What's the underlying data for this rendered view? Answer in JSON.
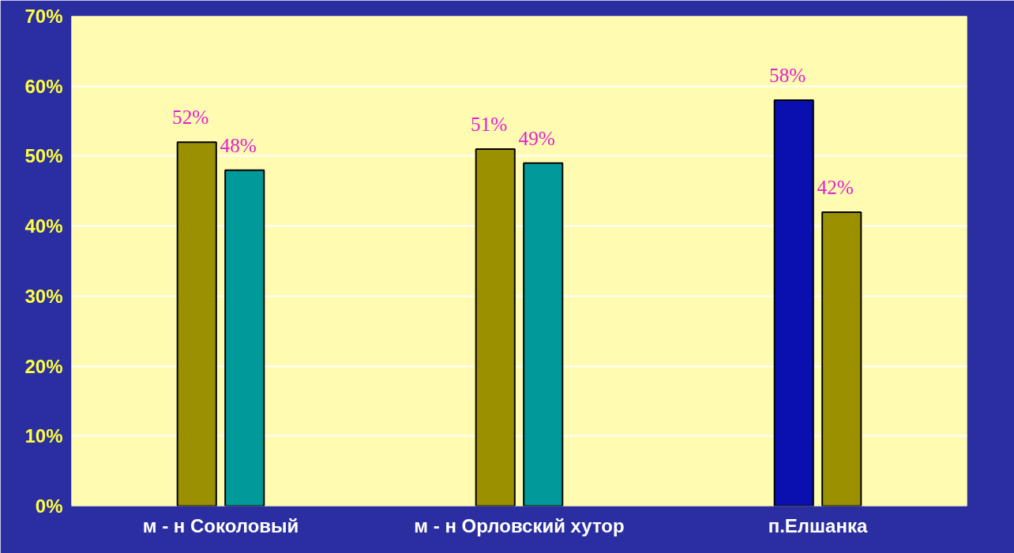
{
  "chart_data": {
    "type": "bar",
    "categories": [
      "м - н Соколовый",
      "м - н Орловский хутор",
      "п.Елшанка"
    ],
    "series": [
      {
        "colors": [
          "#9a9000",
          "#9a9000",
          "#0a10b0"
        ],
        "values": [
          52,
          51,
          58
        ]
      },
      {
        "colors": [
          "#009a9a",
          "#009a9a",
          "#9a9000"
        ],
        "values": [
          48,
          49,
          42
        ]
      }
    ],
    "ylim": [
      0,
      70
    ],
    "yticks": [
      {
        "value": 0,
        "label": "0%"
      },
      {
        "value": 10,
        "label": "10%"
      },
      {
        "value": 20,
        "label": "20%"
      },
      {
        "value": 30,
        "label": "30%"
      },
      {
        "value": 40,
        "label": "40%"
      },
      {
        "value": 50,
        "label": "50%"
      },
      {
        "value": 60,
        "label": "60%"
      },
      {
        "value": 70,
        "label": "70%"
      }
    ],
    "value_labels": [
      [
        "52%",
        "51%",
        "58%"
      ],
      [
        "48%",
        "49%",
        "42%"
      ]
    ],
    "grid": "y"
  }
}
